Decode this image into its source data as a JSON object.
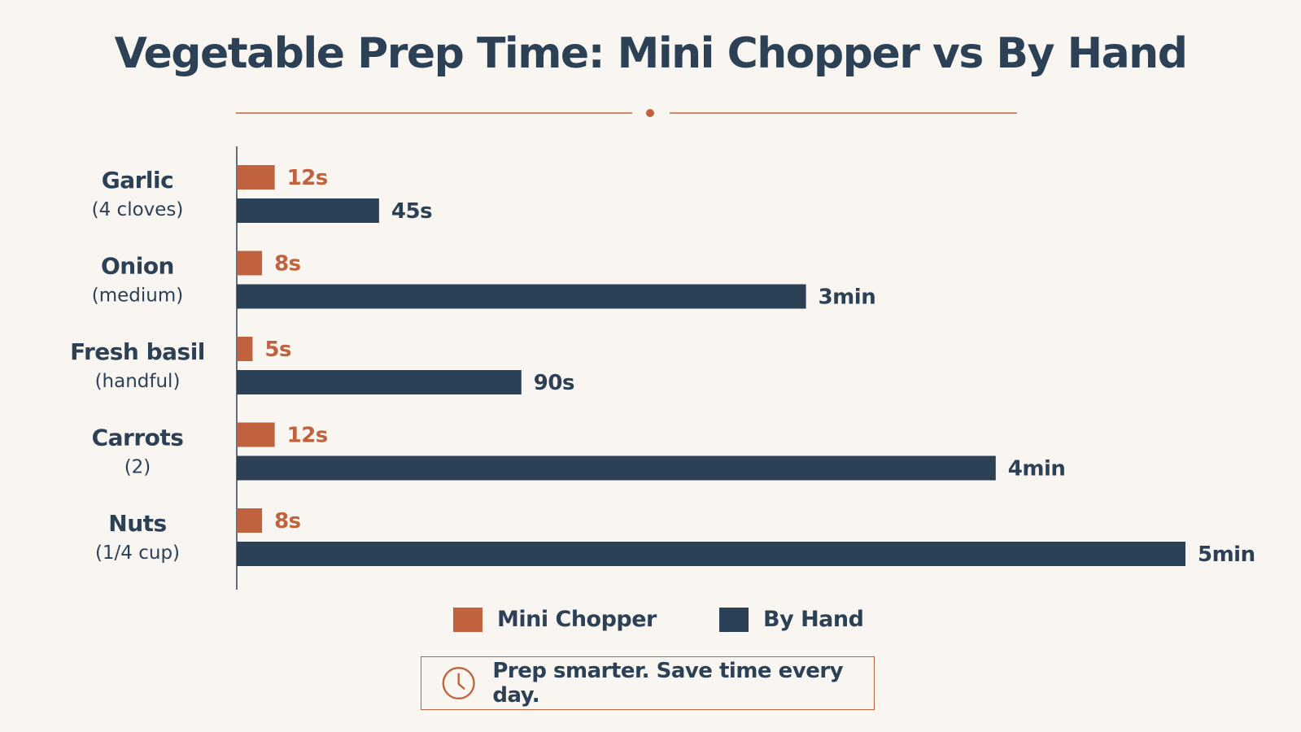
{
  "colors": {
    "mini_chopper": "#c0623d",
    "by_hand": "#2d4156",
    "axis": "#2d4156",
    "background": "#f9f6f1"
  },
  "footer": {
    "text": "Prep smarter. Save time every day.",
    "icon": "clock-icon"
  },
  "chart_data": {
    "type": "bar",
    "orientation": "horizontal",
    "title": "Vegetable Prep Time: Mini Chopper vs By Hand",
    "xlabel": "",
    "ylabel": "",
    "unit": "seconds",
    "xlim": [
      0,
      300
    ],
    "grid": false,
    "legend_position": "bottom",
    "categories": [
      "Garlic",
      "Onion",
      "Fresh basil",
      "Carrots",
      "Nuts"
    ],
    "category_subtitles": [
      "(4 cloves)",
      "(medium)",
      "(handful)",
      "(2)",
      "(1/4 cup)"
    ],
    "series": [
      {
        "name": "Mini Chopper",
        "values": [
          12,
          8,
          5,
          12,
          8
        ],
        "labels": [
          "12s",
          "8s",
          "5s",
          "12s",
          "8s"
        ]
      },
      {
        "name": "By Hand",
        "values": [
          45,
          180,
          90,
          240,
          300
        ],
        "labels": [
          "45s",
          "3min",
          "90s",
          "4min",
          "5min"
        ]
      }
    ]
  }
}
